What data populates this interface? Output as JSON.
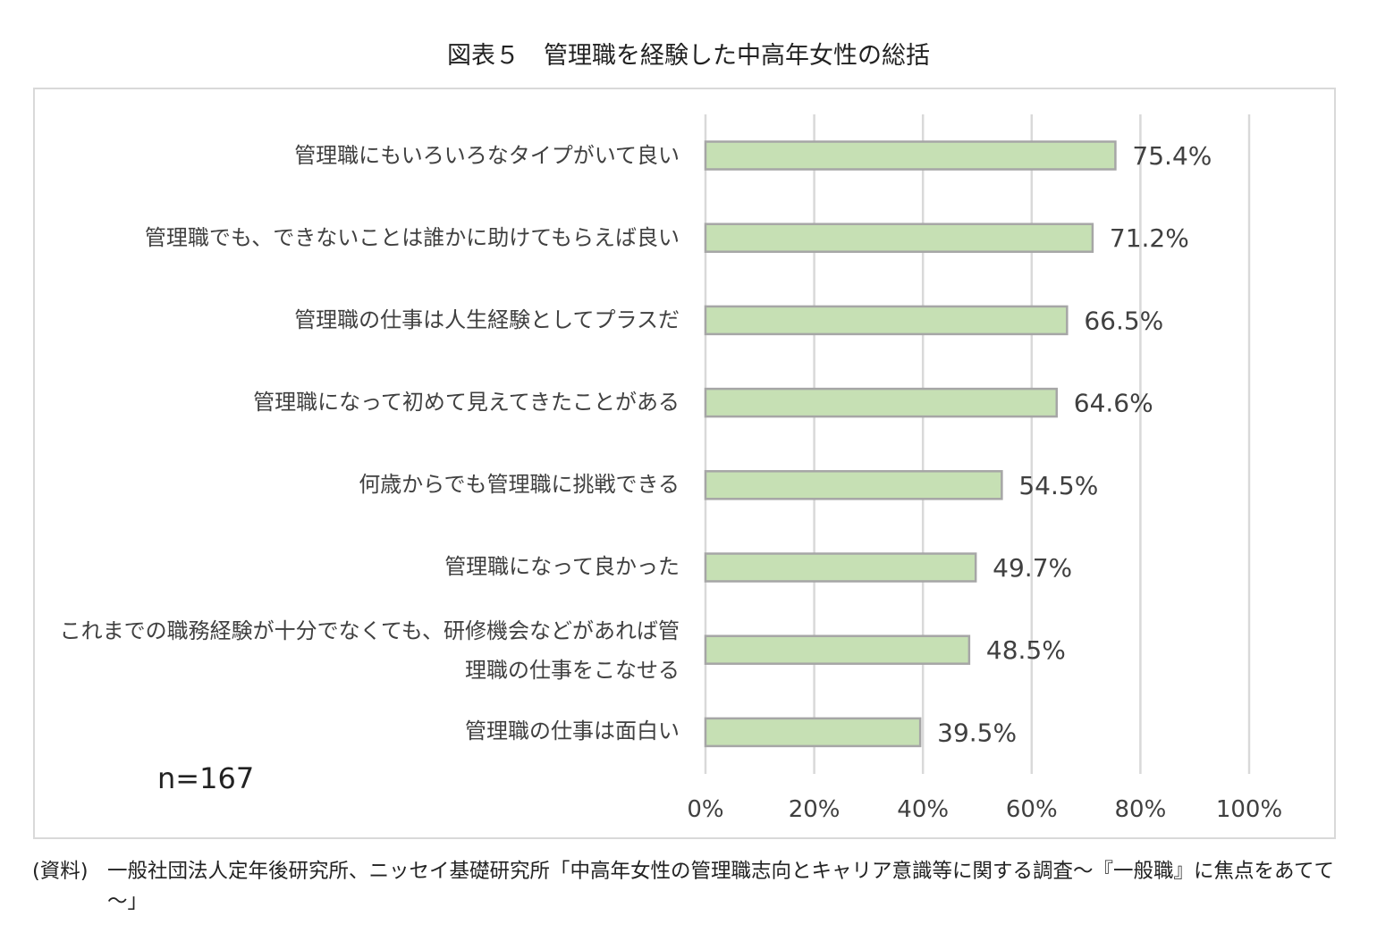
{
  "title": "図表５　管理職を経験した中高年女性の総括",
  "sample_size": "n=167",
  "source": {
    "prefix": "(資料)",
    "text": "一般社団法人定年後研究所、ニッセイ基礎研究所「中高年女性の管理職志向とキャリア意識等に関する調査～『一般職』に焦点をあてて～」"
  },
  "colors": {
    "bar_fill": "#c6e0b4",
    "bar_stroke": "#a6a6a6",
    "grid": "#d9d9d9",
    "text": "#404040"
  },
  "chart_data": {
    "type": "bar",
    "orientation": "horizontal",
    "categories": [
      "管理職にもいろいろなタイプがいて良い",
      "管理職でも、できないことは誰かに助けてもらえば良い",
      "管理職の仕事は人生経験としてプラスだ",
      "管理職になって初めて見えてきたことがある",
      "何歳からでも管理職に挑戦できる",
      "管理職になって良かった",
      "これまでの職務経験が十分でなくても、研修機会などがあれば管理職の仕事をこなせる",
      "管理職の仕事は面白い"
    ],
    "values": [
      75.4,
      71.2,
      66.5,
      64.6,
      54.5,
      49.7,
      48.5,
      39.5
    ],
    "data_labels": [
      "75.4%",
      "71.2%",
      "66.5%",
      "64.6%",
      "54.5%",
      "49.7%",
      "48.5%",
      "39.5%"
    ],
    "xlim": [
      0,
      100
    ],
    "x_ticks": [
      "0%",
      "20%",
      "40%",
      "60%",
      "80%",
      "100%"
    ],
    "grid": true,
    "legend": "none"
  }
}
